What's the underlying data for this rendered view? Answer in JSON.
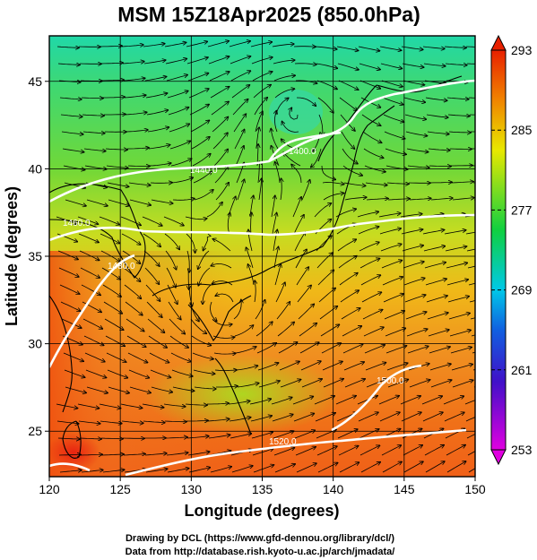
{
  "title": "MSM 15Z18Apr2025 (850.0hPa)",
  "x_axis": {
    "label": "Longitude (degrees)",
    "ticks": [
      "120",
      "125",
      "130",
      "135",
      "140",
      "145",
      "150"
    ],
    "range": [
      120,
      150
    ]
  },
  "y_axis": {
    "label": "Latitude  (degrees)",
    "ticks": [
      "25",
      "30",
      "35",
      "40",
      "45"
    ],
    "range": [
      22.4,
      47.6
    ]
  },
  "colorbar": {
    "ticks": [
      "253",
      "261",
      "269",
      "277",
      "285",
      "293"
    ],
    "range": [
      253,
      293
    ],
    "colors": [
      "#e000e0",
      "#1010d0",
      "#00c8e8",
      "#10d040",
      "#e8e800",
      "#f08000",
      "#e82000"
    ]
  },
  "contours": {
    "labels": [
      "1440.0",
      "1400.0",
      "1520.0",
      "1500.0",
      "1480.0",
      "1460.0"
    ]
  },
  "footer": {
    "line1": "Drawing by DCL (https://www.gfd-dennou.org/library/dcl/)",
    "line2": "Data from http://database.rish.kyoto-u.ac.jp/arch/jmadata/"
  }
}
